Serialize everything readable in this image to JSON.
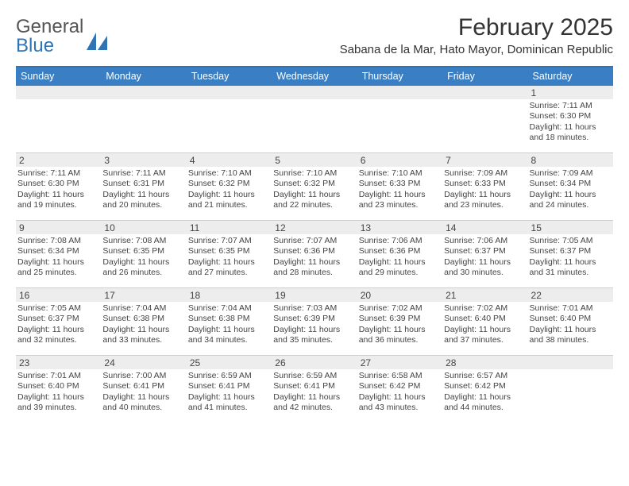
{
  "logo": {
    "text1": "General",
    "text2": "Blue"
  },
  "title": "February 2025",
  "location": "Sabana de la Mar, Hato Mayor, Dominican Republic",
  "colors": {
    "header_bar": "#3a7fc4",
    "top_rule": "#2f74b5",
    "day_head_bg": "#ededed",
    "row_border": "#cfcfcf",
    "text": "#333333"
  },
  "weekdays": [
    "Sunday",
    "Monday",
    "Tuesday",
    "Wednesday",
    "Thursday",
    "Friday",
    "Saturday"
  ],
  "weeks": [
    [
      {
        "num": "",
        "sunrise": "",
        "sunset": "",
        "daylight": ""
      },
      {
        "num": "",
        "sunrise": "",
        "sunset": "",
        "daylight": ""
      },
      {
        "num": "",
        "sunrise": "",
        "sunset": "",
        "daylight": ""
      },
      {
        "num": "",
        "sunrise": "",
        "sunset": "",
        "daylight": ""
      },
      {
        "num": "",
        "sunrise": "",
        "sunset": "",
        "daylight": ""
      },
      {
        "num": "",
        "sunrise": "",
        "sunset": "",
        "daylight": ""
      },
      {
        "num": "1",
        "sunrise": "Sunrise: 7:11 AM",
        "sunset": "Sunset: 6:30 PM",
        "daylight": "Daylight: 11 hours and 18 minutes."
      }
    ],
    [
      {
        "num": "2",
        "sunrise": "Sunrise: 7:11 AM",
        "sunset": "Sunset: 6:30 PM",
        "daylight": "Daylight: 11 hours and 19 minutes."
      },
      {
        "num": "3",
        "sunrise": "Sunrise: 7:11 AM",
        "sunset": "Sunset: 6:31 PM",
        "daylight": "Daylight: 11 hours and 20 minutes."
      },
      {
        "num": "4",
        "sunrise": "Sunrise: 7:10 AM",
        "sunset": "Sunset: 6:32 PM",
        "daylight": "Daylight: 11 hours and 21 minutes."
      },
      {
        "num": "5",
        "sunrise": "Sunrise: 7:10 AM",
        "sunset": "Sunset: 6:32 PM",
        "daylight": "Daylight: 11 hours and 22 minutes."
      },
      {
        "num": "6",
        "sunrise": "Sunrise: 7:10 AM",
        "sunset": "Sunset: 6:33 PM",
        "daylight": "Daylight: 11 hours and 23 minutes."
      },
      {
        "num": "7",
        "sunrise": "Sunrise: 7:09 AM",
        "sunset": "Sunset: 6:33 PM",
        "daylight": "Daylight: 11 hours and 23 minutes."
      },
      {
        "num": "8",
        "sunrise": "Sunrise: 7:09 AM",
        "sunset": "Sunset: 6:34 PM",
        "daylight": "Daylight: 11 hours and 24 minutes."
      }
    ],
    [
      {
        "num": "9",
        "sunrise": "Sunrise: 7:08 AM",
        "sunset": "Sunset: 6:34 PM",
        "daylight": "Daylight: 11 hours and 25 minutes."
      },
      {
        "num": "10",
        "sunrise": "Sunrise: 7:08 AM",
        "sunset": "Sunset: 6:35 PM",
        "daylight": "Daylight: 11 hours and 26 minutes."
      },
      {
        "num": "11",
        "sunrise": "Sunrise: 7:07 AM",
        "sunset": "Sunset: 6:35 PM",
        "daylight": "Daylight: 11 hours and 27 minutes."
      },
      {
        "num": "12",
        "sunrise": "Sunrise: 7:07 AM",
        "sunset": "Sunset: 6:36 PM",
        "daylight": "Daylight: 11 hours and 28 minutes."
      },
      {
        "num": "13",
        "sunrise": "Sunrise: 7:06 AM",
        "sunset": "Sunset: 6:36 PM",
        "daylight": "Daylight: 11 hours and 29 minutes."
      },
      {
        "num": "14",
        "sunrise": "Sunrise: 7:06 AM",
        "sunset": "Sunset: 6:37 PM",
        "daylight": "Daylight: 11 hours and 30 minutes."
      },
      {
        "num": "15",
        "sunrise": "Sunrise: 7:05 AM",
        "sunset": "Sunset: 6:37 PM",
        "daylight": "Daylight: 11 hours and 31 minutes."
      }
    ],
    [
      {
        "num": "16",
        "sunrise": "Sunrise: 7:05 AM",
        "sunset": "Sunset: 6:37 PM",
        "daylight": "Daylight: 11 hours and 32 minutes."
      },
      {
        "num": "17",
        "sunrise": "Sunrise: 7:04 AM",
        "sunset": "Sunset: 6:38 PM",
        "daylight": "Daylight: 11 hours and 33 minutes."
      },
      {
        "num": "18",
        "sunrise": "Sunrise: 7:04 AM",
        "sunset": "Sunset: 6:38 PM",
        "daylight": "Daylight: 11 hours and 34 minutes."
      },
      {
        "num": "19",
        "sunrise": "Sunrise: 7:03 AM",
        "sunset": "Sunset: 6:39 PM",
        "daylight": "Daylight: 11 hours and 35 minutes."
      },
      {
        "num": "20",
        "sunrise": "Sunrise: 7:02 AM",
        "sunset": "Sunset: 6:39 PM",
        "daylight": "Daylight: 11 hours and 36 minutes."
      },
      {
        "num": "21",
        "sunrise": "Sunrise: 7:02 AM",
        "sunset": "Sunset: 6:40 PM",
        "daylight": "Daylight: 11 hours and 37 minutes."
      },
      {
        "num": "22",
        "sunrise": "Sunrise: 7:01 AM",
        "sunset": "Sunset: 6:40 PM",
        "daylight": "Daylight: 11 hours and 38 minutes."
      }
    ],
    [
      {
        "num": "23",
        "sunrise": "Sunrise: 7:01 AM",
        "sunset": "Sunset: 6:40 PM",
        "daylight": "Daylight: 11 hours and 39 minutes."
      },
      {
        "num": "24",
        "sunrise": "Sunrise: 7:00 AM",
        "sunset": "Sunset: 6:41 PM",
        "daylight": "Daylight: 11 hours and 40 minutes."
      },
      {
        "num": "25",
        "sunrise": "Sunrise: 6:59 AM",
        "sunset": "Sunset: 6:41 PM",
        "daylight": "Daylight: 11 hours and 41 minutes."
      },
      {
        "num": "26",
        "sunrise": "Sunrise: 6:59 AM",
        "sunset": "Sunset: 6:41 PM",
        "daylight": "Daylight: 11 hours and 42 minutes."
      },
      {
        "num": "27",
        "sunrise": "Sunrise: 6:58 AM",
        "sunset": "Sunset: 6:42 PM",
        "daylight": "Daylight: 11 hours and 43 minutes."
      },
      {
        "num": "28",
        "sunrise": "Sunrise: 6:57 AM",
        "sunset": "Sunset: 6:42 PM",
        "daylight": "Daylight: 11 hours and 44 minutes."
      },
      {
        "num": "",
        "sunrise": "",
        "sunset": "",
        "daylight": ""
      }
    ]
  ]
}
